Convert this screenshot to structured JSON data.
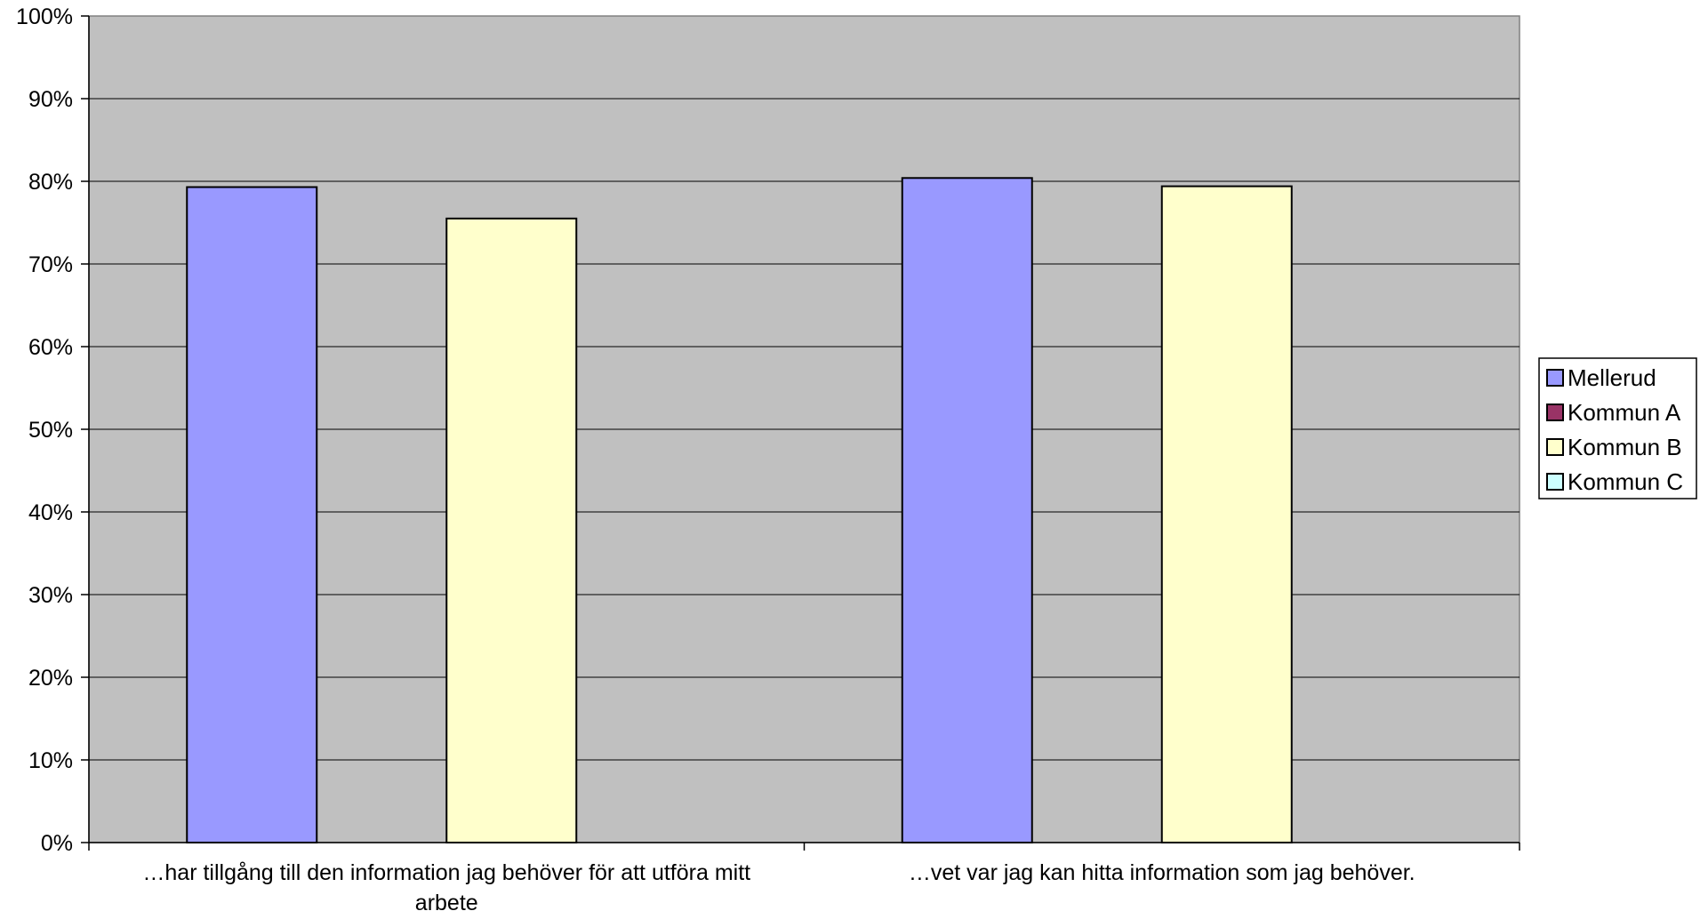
{
  "chart_data": {
    "type": "bar",
    "categories": [
      [
        "…har tillgång till den information jag behöver för att utföra mitt",
        "arbete"
      ],
      [
        "…vet var jag kan hitta information som jag behöver."
      ]
    ],
    "series": [
      {
        "name": "Mellerud",
        "color": "#9999ff",
        "values": [
          79.3,
          80.4
        ]
      },
      {
        "name": "Kommun A",
        "color": "#993366",
        "values": [
          null,
          null
        ]
      },
      {
        "name": "Kommun B",
        "color": "#ffffcc",
        "values": [
          75.5,
          79.4
        ]
      },
      {
        "name": "Kommun C",
        "color": "#ccffff",
        "values": [
          null,
          null
        ]
      }
    ],
    "ylim": [
      0,
      100
    ],
    "yticks": [
      0,
      10,
      20,
      30,
      40,
      50,
      60,
      70,
      80,
      90,
      100
    ],
    "ytick_suffix": "%",
    "title": "",
    "xlabel": "",
    "ylabel": "",
    "grid": true,
    "legend_position": "right",
    "plot_background": "#c0c0c0"
  }
}
